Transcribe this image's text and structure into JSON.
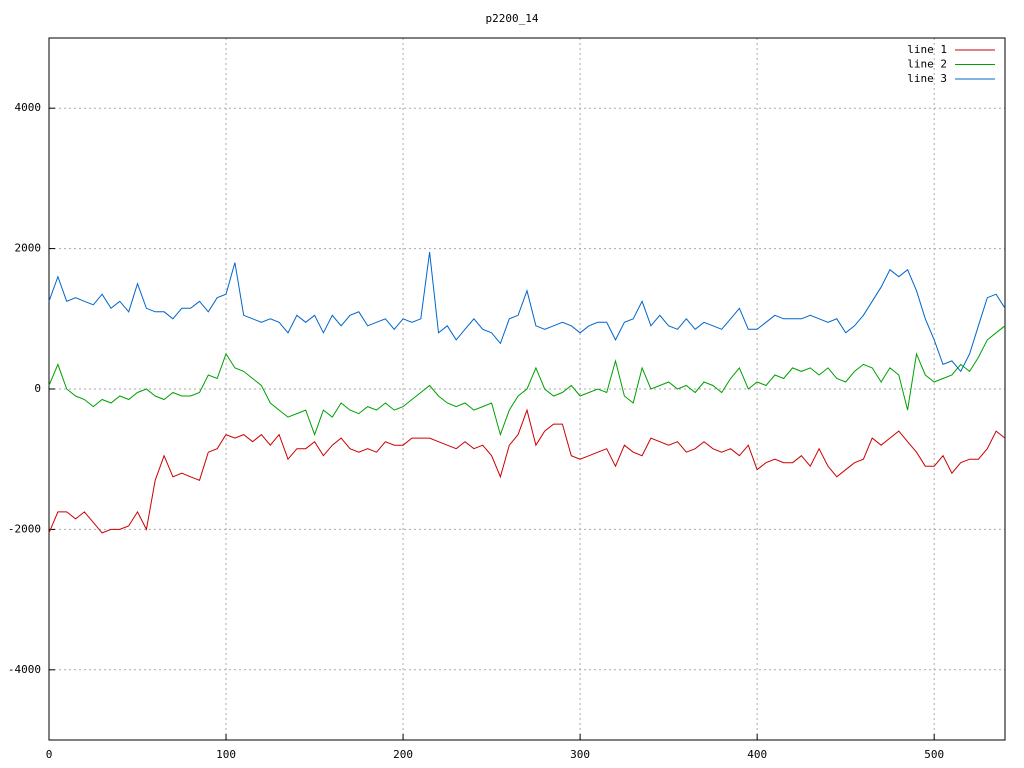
{
  "chart_data": {
    "type": "line",
    "title": "p2200_14",
    "x": [
      0,
      5,
      10,
      15,
      20,
      25,
      30,
      35,
      40,
      45,
      50,
      55,
      60,
      65,
      70,
      75,
      80,
      85,
      90,
      95,
      100,
      105,
      110,
      115,
      120,
      125,
      130,
      135,
      140,
      145,
      150,
      155,
      160,
      165,
      170,
      175,
      180,
      185,
      190,
      195,
      200,
      205,
      210,
      215,
      220,
      225,
      230,
      235,
      240,
      245,
      250,
      255,
      260,
      265,
      270,
      275,
      280,
      285,
      290,
      295,
      300,
      305,
      310,
      315,
      320,
      325,
      330,
      335,
      340,
      345,
      350,
      355,
      360,
      365,
      370,
      375,
      380,
      385,
      390,
      395,
      400,
      405,
      410,
      415,
      420,
      425,
      430,
      435,
      440,
      445,
      450,
      455,
      460,
      465,
      470,
      475,
      480,
      485,
      490,
      495,
      500,
      505,
      510,
      515,
      520,
      525,
      530,
      535,
      540
    ],
    "series": [
      {
        "name": "line 1",
        "color": "#cc0000",
        "values": [
          -2050,
          -1750,
          -1750,
          -1850,
          -1750,
          -1900,
          -2050,
          -2000,
          -2000,
          -1950,
          -1750,
          -2000,
          -1300,
          -950,
          -1250,
          -1200,
          -1250,
          -1300,
          -900,
          -850,
          -650,
          -700,
          -650,
          -750,
          -650,
          -800,
          -650,
          -1000,
          -850,
          -850,
          -750,
          -950,
          -800,
          -700,
          -850,
          -900,
          -850,
          -900,
          -750,
          -800,
          -800,
          -700,
          -700,
          -700,
          -750,
          -800,
          -850,
          -750,
          -850,
          -800,
          -950,
          -1250,
          -800,
          -650,
          -300,
          -800,
          -600,
          -500,
          -500,
          -950,
          -1000,
          -950,
          -900,
          -850,
          -1100,
          -800,
          -900,
          -950,
          -700,
          -750,
          -800,
          -750,
          -900,
          -850,
          -750,
          -850,
          -900,
          -850,
          -950,
          -800,
          -1150,
          -1050,
          -1000,
          -1050,
          -1050,
          -950,
          -1100,
          -850,
          -1100,
          -1250,
          -1150,
          -1050,
          -1000,
          -700,
          -800,
          -700,
          -600,
          -750,
          -900,
          -1100,
          -1100,
          -950,
          -1200,
          -1050,
          -1000,
          -1000,
          -850,
          -600,
          -700
        ]
      },
      {
        "name": "line 2",
        "color": "#00a000",
        "values": [
          50,
          350,
          0,
          -100,
          -150,
          -250,
          -150,
          -200,
          -100,
          -150,
          -50,
          0,
          -100,
          -150,
          -50,
          -100,
          -100,
          -50,
          200,
          150,
          500,
          300,
          250,
          150,
          50,
          -200,
          -300,
          -400,
          -350,
          -300,
          -650,
          -300,
          -400,
          -200,
          -300,
          -350,
          -250,
          -300,
          -200,
          -300,
          -250,
          -150,
          -50,
          50,
          -100,
          -200,
          -250,
          -200,
          -300,
          -250,
          -200,
          -650,
          -300,
          -100,
          0,
          300,
          0,
          -100,
          -50,
          50,
          -100,
          -50,
          0,
          -50,
          400,
          -100,
          -200,
          300,
          0,
          50,
          100,
          0,
          50,
          -50,
          100,
          50,
          -50,
          150,
          300,
          0,
          100,
          50,
          200,
          150,
          300,
          250,
          300,
          200,
          300,
          150,
          100,
          250,
          350,
          300,
          100,
          300,
          200,
          -300,
          500,
          200,
          100,
          150,
          200,
          350,
          250,
          450,
          700,
          800,
          900
        ]
      },
      {
        "name": "line 3",
        "color": "#0066cc",
        "values": [
          1250,
          1600,
          1250,
          1300,
          1250,
          1200,
          1350,
          1150,
          1250,
          1100,
          1500,
          1150,
          1100,
          1100,
          1000,
          1150,
          1150,
          1250,
          1100,
          1300,
          1350,
          1800,
          1050,
          1000,
          950,
          1000,
          950,
          800,
          1050,
          950,
          1050,
          800,
          1050,
          900,
          1050,
          1100,
          900,
          950,
          1000,
          850,
          1000,
          950,
          1000,
          1950,
          800,
          900,
          700,
          850,
          1000,
          850,
          800,
          650,
          1000,
          1050,
          1400,
          900,
          850,
          900,
          950,
          900,
          800,
          900,
          950,
          950,
          700,
          950,
          1000,
          1250,
          900,
          1050,
          900,
          850,
          1000,
          850,
          950,
          900,
          850,
          1000,
          1150,
          850,
          850,
          950,
          1050,
          1000,
          1000,
          1000,
          1050,
          1000,
          950,
          1000,
          800,
          900,
          1050,
          1250,
          1450,
          1700,
          1600,
          1700,
          1400,
          1000,
          700,
          350,
          400,
          250,
          500,
          900,
          1300,
          1350,
          1150
        ]
      }
    ],
    "xlim": [
      0,
      540
    ],
    "xticks": [
      0,
      100,
      200,
      300,
      400,
      500
    ],
    "ylim": [
      -5000,
      5000
    ],
    "yticks": [
      -4000,
      -2000,
      0,
      2000,
      4000
    ],
    "grid": true,
    "legend": "top-right"
  }
}
